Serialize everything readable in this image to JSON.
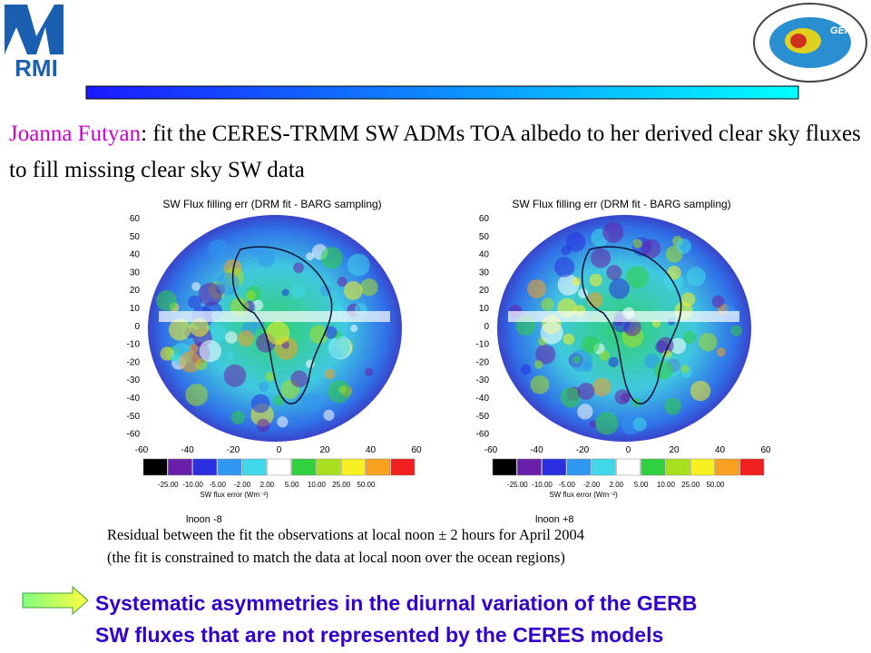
{
  "logo": {
    "text": "RMI"
  },
  "gerb_logo": {
    "text": "GERB"
  },
  "intro": {
    "name": "Joanna Futyan",
    "text": ": fit the CERES-TRMM SW ADMs TOA albedo to her derived clear sky fluxes  to fill missing clear sky SW data"
  },
  "panels": [
    {
      "title": "SW Flux filling err (DRM fit - BARG sampling)",
      "yticks": [
        60,
        50,
        40,
        30,
        20,
        10,
        0,
        -10,
        -20,
        -30,
        -40,
        -50,
        -60
      ],
      "xticks": [
        -60,
        -40,
        -20,
        0,
        20,
        40,
        60
      ],
      "colorbar_labels": [
        "-25.00",
        "-10.00",
        "-5.00",
        "-2.00",
        "2.00",
        "5.00",
        "10.00",
        "25.00",
        "50.00"
      ],
      "colorbar_title": "SW flux error (Wm⁻²)",
      "label": "lnoon -8"
    },
    {
      "title": "SW Flux filling err (DRM fit - BARG sampling)",
      "yticks": [
        60,
        50,
        40,
        30,
        20,
        10,
        0,
        -10,
        -20,
        -30,
        -40,
        -50,
        -60
      ],
      "xticks": [
        -60,
        -40,
        -20,
        0,
        20,
        40,
        60
      ],
      "colorbar_labels": [
        "-25.00",
        "-10.00",
        "-5.00",
        "-2.00",
        "2.00",
        "5.00",
        "10.00",
        "25.00",
        "50.00"
      ],
      "colorbar_title": "SW flux error (Wm⁻²)",
      "label": "lnoon +8"
    }
  ],
  "caption": [
    "Residual between the fit the observations at local noon  ± 2 hours for April 2004",
    "(the fit is constrained to match the data at local noon over the ocean regions)"
  ],
  "conclusion": [
    "Systematic asymmetries in the diurnal variation of the GERB",
    "SW fluxes that are not represented by the CERES models"
  ]
}
